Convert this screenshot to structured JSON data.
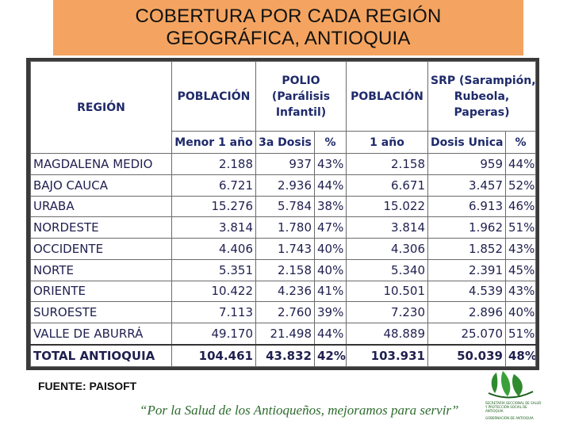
{
  "header": {
    "title_line1": "COBERTURA POR CADA REGIÓN",
    "title_line2": "GEOGRÁFICA, ANTIOQUIA"
  },
  "table": {
    "headers": {
      "region": "REGIÓN",
      "poblacion1": "POBLACIÓN",
      "polio_l1": "POLIO",
      "polio_l2": "(Parálisis",
      "polio_l3": "Infantil)",
      "poblacion2": "POBLACIÓN",
      "srp_l1": "SRP (Sarampión,",
      "srp_l2": "Rubeola,",
      "srp_l3": "Paperas)",
      "sub_menor": "Menor 1 año",
      "sub_3a": "3a Dosis",
      "sub_pct1": "%",
      "sub_1ano": "1 año",
      "sub_unica": "Dosis Unica",
      "sub_pct2": "%"
    },
    "rows": [
      {
        "region": "MAGDALENA MEDIO",
        "pob1": "2.188",
        "dosis3": "937",
        "pct1": "43%",
        "pob2": "2.158",
        "unica": "959",
        "pct2": "44%"
      },
      {
        "region": "BAJO CAUCA",
        "pob1": "6.721",
        "dosis3": "2.936",
        "pct1": "44%",
        "pob2": "6.671",
        "unica": "3.457",
        "pct2": "52%"
      },
      {
        "region": "URABA",
        "pob1": "15.276",
        "dosis3": "5.784",
        "pct1": "38%",
        "pob2": "15.022",
        "unica": "6.913",
        "pct2": "46%"
      },
      {
        "region": "NORDESTE",
        "pob1": "3.814",
        "dosis3": "1.780",
        "pct1": "47%",
        "pob2": "3.814",
        "unica": "1.962",
        "pct2": "51%"
      },
      {
        "region": "OCCIDENTE",
        "pob1": "4.406",
        "dosis3": "1.743",
        "pct1": "40%",
        "pob2": "4.306",
        "unica": "1.852",
        "pct2": "43%"
      },
      {
        "region": "NORTE",
        "pob1": "5.351",
        "dosis3": "2.158",
        "pct1": "40%",
        "pob2": "5.340",
        "unica": "2.391",
        "pct2": "45%"
      },
      {
        "region": "ORIENTE",
        "pob1": "10.422",
        "dosis3": "4.236",
        "pct1": "41%",
        "pob2": "10.501",
        "unica": "4.539",
        "pct2": "43%"
      },
      {
        "region": "SUROESTE",
        "pob1": "7.113",
        "dosis3": "2.760",
        "pct1": "39%",
        "pob2": "7.230",
        "unica": "2.896",
        "pct2": "40%"
      },
      {
        "region": "VALLE DE ABURRÁ",
        "pob1": "49.170",
        "dosis3": "21.498",
        "pct1": "44%",
        "pob2": "48.889",
        "unica": "25.070",
        "pct2": "51%"
      }
    ],
    "total": {
      "region": "TOTAL ANTIOQUIA",
      "pob1": "104.461",
      "dosis3": "43.832",
      "pct1": "42%",
      "pob2": "103.931",
      "unica": "50.039",
      "pct2": "48%"
    }
  },
  "footer": {
    "source": "FUENTE: PAISOFT",
    "slogan": "“Por la Salud de los Antioqueños, mejoramos para servir”",
    "logo_text": "SECRETARÍA SECCIONAL DE SALUD Y PROTECCIÓN SOCIAL DE ANTIOQUIA",
    "logo_footer": "GOBERNACIÓN DE ANTIOQUIA"
  },
  "colors": {
    "title_bg": "#f4a460",
    "table_text": "#1f1f4f",
    "header_text": "#1f2a6b",
    "slogan": "#2d6b2d",
    "logo_green": "#2e8b2e"
  },
  "icons": {
    "logo": "gobernacion-antioquia-logo"
  }
}
